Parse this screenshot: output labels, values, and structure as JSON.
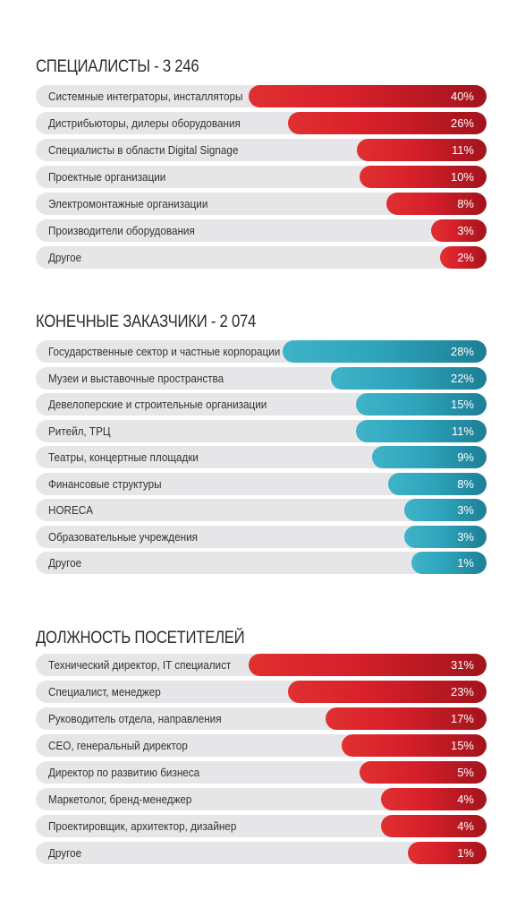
{
  "colors": {
    "red": "#d8202b",
    "teal": "#2ea4bb",
    "track": "#e6e6e8"
  },
  "chart_data": [
    {
      "type": "bar",
      "title": "СПЕЦИАЛИСТЫ - 3 246",
      "color": "red",
      "categories": [
        "Системные интеграторы, инсталляторы",
        "Дистрибьюторы, дилеры оборудования",
        "Специалисты в области Digital Signage",
        "Проектные организации",
        "Электромонтажные организации",
        "Производители оборудования",
        "Другое"
      ],
      "values": [
        40,
        26,
        11,
        10,
        8,
        3,
        2
      ],
      "value_labels": [
        "40%",
        "26%",
        "11%",
        "10%",
        "8%",
        "3%",
        "2%"
      ]
    },
    {
      "type": "bar",
      "title": "КОНЕЧНЫЕ ЗАКАЗЧИКИ - 2 074",
      "color": "teal",
      "categories": [
        "Государственные сектор и частные корпорации",
        "Музеи и выставочные пространства",
        "Девелоперские и строительные организации",
        "Ритейл, ТРЦ",
        "Театры, концертные площадки",
        "Финансовые структуры",
        "HORECA",
        "Образовательные учреждения",
        "Другое"
      ],
      "values": [
        28,
        22,
        15,
        11,
        9,
        8,
        3,
        3,
        1
      ],
      "value_labels": [
        "28%",
        "22%",
        "15%",
        "11%",
        "9%",
        "8%",
        "3%",
        "3%",
        "1%"
      ]
    },
    {
      "type": "bar",
      "title": "ДОЛЖНОСТЬ ПОСЕТИТЕЛЕЙ",
      "color": "red",
      "categories": [
        "Технический директор, IT специалист",
        "Специалист, менеджер",
        "Руководитель отдела, направления",
        "CEO, генеральный директор",
        "Директор по развитию бизнеса",
        "Маркетолог, бренд-менеджер",
        "Проектировщик, архитектор, дизайнер",
        "Другое"
      ],
      "values": [
        31,
        23,
        17,
        15,
        5,
        4,
        4,
        1
      ],
      "value_labels": [
        "31%",
        "23%",
        "17%",
        "15%",
        "5%",
        "4%",
        "4%",
        "1%"
      ]
    }
  ]
}
